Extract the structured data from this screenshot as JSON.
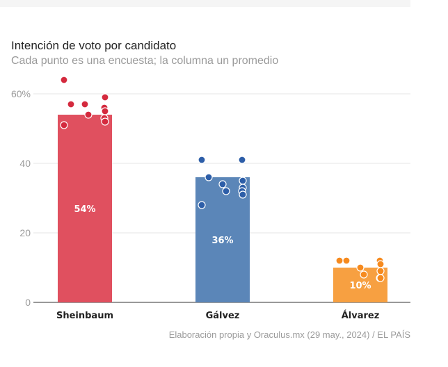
{
  "header": {
    "title": "Intención de voto por candidato",
    "subtitle": "Cada punto es una encuesta; la columna un promedio"
  },
  "source": "Elaboración propia y Oraculus.mx (29 may., 2024) / EL PAÍS",
  "chart_data": {
    "type": "bar",
    "title": "Intención de voto por candidato",
    "subtitle": "Cada punto es una encuesta; la columna un promedio",
    "xlabel": "",
    "ylabel": "",
    "ylim": [
      0,
      60
    ],
    "yticks": [
      0,
      20,
      40,
      60
    ],
    "ytick_labels": [
      "0",
      "20",
      "40",
      "60%"
    ],
    "grid": true,
    "categories": [
      "Sheinbaum",
      "Gálvez",
      "Álvarez"
    ],
    "values": [
      54,
      36,
      10
    ],
    "value_labels": [
      "54%",
      "36%",
      "10%"
    ],
    "colors": [
      "#e0505f",
      "#5b86b8",
      "#f7a041"
    ],
    "point_colors": [
      "#d42a3e",
      "#2d5ea8",
      "#f68a1e"
    ],
    "polls": [
      [
        64,
        56,
        57,
        59,
        57,
        55,
        54,
        53,
        52,
        51
      ],
      [
        41,
        41,
        36,
        35,
        34,
        33,
        32,
        32,
        31,
        28
      ],
      [
        12,
        12,
        12,
        11,
        10,
        9,
        8,
        7,
        7
      ]
    ]
  }
}
